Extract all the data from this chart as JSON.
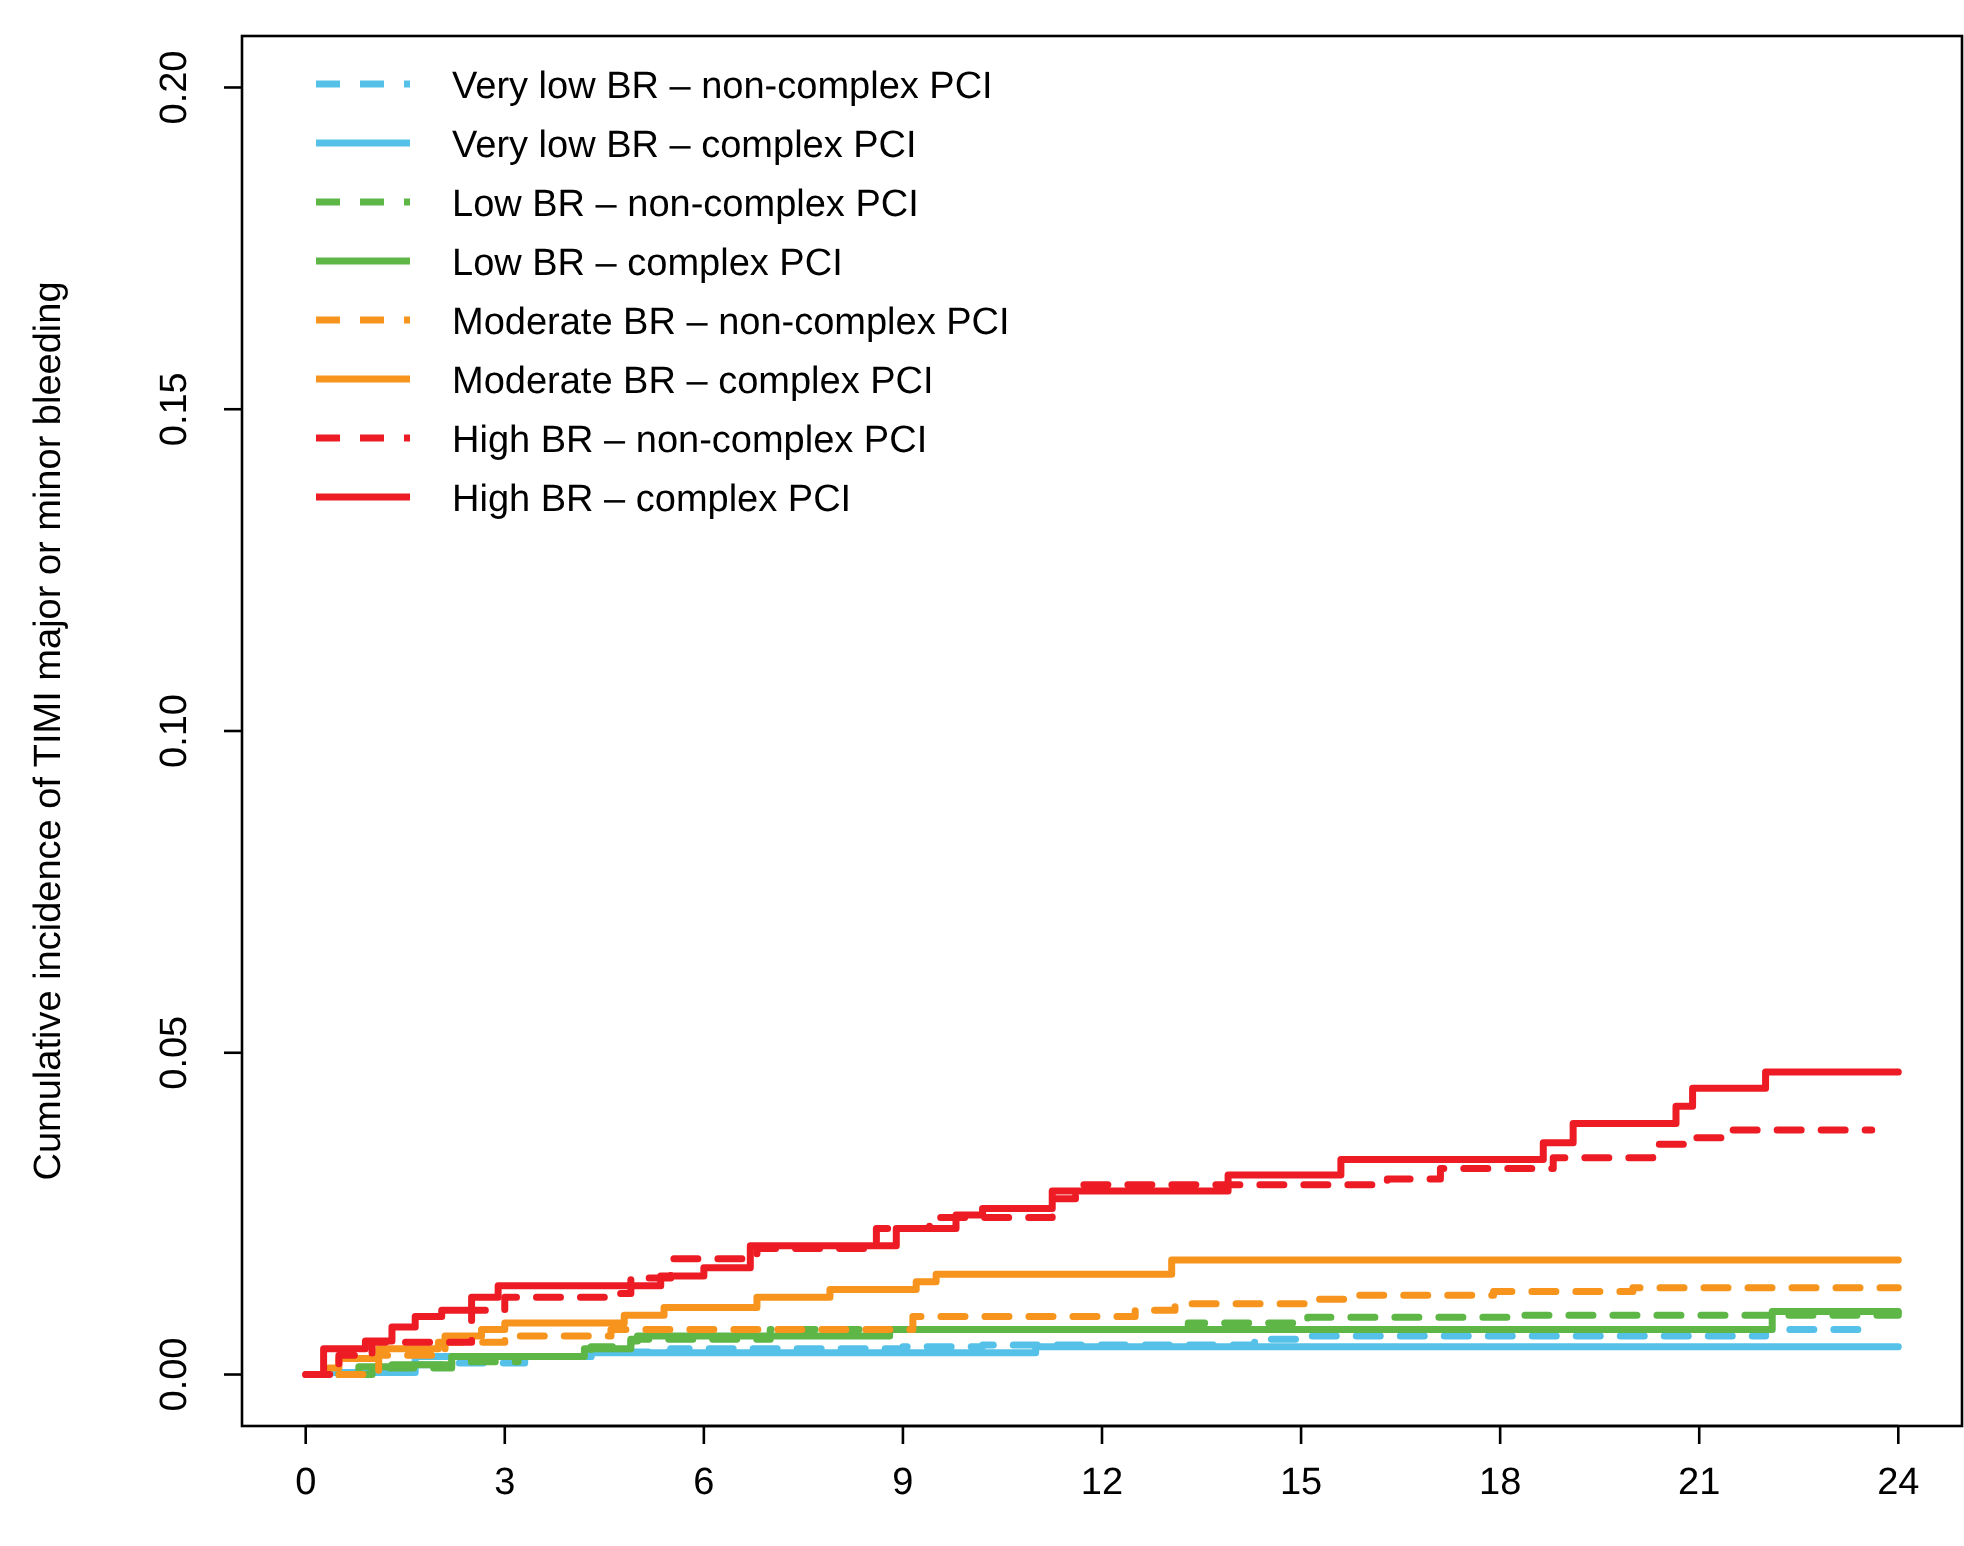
{
  "chart_data": {
    "type": "step",
    "ylabel": "Cumulative incidence of TIMI major or minor bleeding",
    "xlim": [
      -0.96,
      24.96
    ],
    "ylim": [
      -0.008,
      0.208
    ],
    "xticks": [
      0,
      3,
      6,
      9,
      12,
      15,
      18,
      21,
      24
    ],
    "yticks": [
      {
        "value": 0,
        "label": "0.00"
      },
      {
        "value": 0.05,
        "label": "0.05"
      },
      {
        "value": 0.1,
        "label": "0.10"
      },
      {
        "value": 0.15,
        "label": "0.15"
      },
      {
        "value": 0.2,
        "label": "0.20"
      }
    ],
    "grid": false,
    "legend": "top left",
    "series": [
      {
        "name": "Very low BR – non-complex PCI",
        "color": "#56c1e8",
        "line_style": "dashed",
        "x": [
          0.5,
          0.9,
          1.4,
          2.2,
          3.3,
          4.3,
          5.5,
          9.0,
          10.2,
          14.3,
          15.1,
          22.0,
          23.6
        ],
        "values": [
          0,
          0.001,
          0.0015,
          0.0018,
          0.0028,
          0.0035,
          0.004,
          0.0043,
          0.0046,
          0.0055,
          0.006,
          0.007,
          0.007
        ]
      },
      {
        "name": "Very low BR – complex PCI",
        "color": "#56c1e8",
        "line_style": "solid",
        "x": [
          0.4,
          1.65,
          4.3,
          11.0,
          24
        ],
        "values": [
          0.0003,
          0.0028,
          0.0034,
          0.0043,
          0.0043
        ]
      },
      {
        "name": "Low BR – non-complex PCI",
        "color": "#5db646",
        "line_style": "dashed",
        "x": [
          0.7,
          1.0,
          2.2,
          3.2,
          4.3,
          4.9,
          7.0,
          13.3,
          15.1,
          18.2,
          24
        ],
        "values": [
          0,
          0.001,
          0.002,
          0.0028,
          0.0043,
          0.0055,
          0.007,
          0.008,
          0.0089,
          0.0092,
          0.0098
        ]
      },
      {
        "name": "Low BR – complex PCI",
        "color": "#5db646",
        "line_style": "solid",
        "x": [
          0.5,
          0.8,
          1.3,
          2.2,
          4.2,
          4.9,
          5.0,
          8.8,
          22.1,
          24
        ],
        "values": [
          0,
          0.0012,
          0.0015,
          0.0028,
          0.004,
          0.0052,
          0.006,
          0.007,
          0.0098,
          0.0098
        ]
      },
      {
        "name": "Moderate BR – non-complex PCI",
        "color": "#f7941d",
        "line_style": "dashed",
        "x": [
          0.5,
          1.1,
          2.1,
          3.0,
          4.6,
          9.15,
          12.5,
          13.1,
          15.2,
          15.8,
          17.9,
          20.0,
          24
        ],
        "values": [
          0,
          0.003,
          0.005,
          0.006,
          0.007,
          0.009,
          0.01,
          0.011,
          0.0117,
          0.0123,
          0.0129,
          0.0135,
          0.0135
        ]
      },
      {
        "name": "Moderate BR – complex PCI",
        "color": "#f7941d",
        "line_style": "solid",
        "x": [
          0.35,
          0.5,
          1.1,
          2.0,
          2.1,
          2.65,
          3.0,
          4.8,
          5.4,
          6.8,
          7.9,
          9.2,
          9.5,
          13.05,
          24
        ],
        "values": [
          0.001,
          0.0025,
          0.004,
          0.005,
          0.006,
          0.007,
          0.008,
          0.0092,
          0.0104,
          0.012,
          0.0132,
          0.0144,
          0.0156,
          0.0178,
          0.0178
        ]
      },
      {
        "name": "High BR – non-complex PCI",
        "color": "#ed1c24",
        "line_style": "dashed",
        "x": [
          0,
          0.5,
          1.0,
          2.5,
          3.0,
          4.5,
          4.9,
          5.5,
          6.8,
          8.6,
          9.4,
          11.25,
          11.6,
          16.3,
          17.1,
          18.8,
          20.3,
          20.9,
          21.5,
          23.6
        ],
        "values": [
          0,
          0.003,
          0.005,
          0.01,
          0.012,
          0.0126,
          0.015,
          0.018,
          0.0196,
          0.0227,
          0.0244,
          0.0273,
          0.0295,
          0.0304,
          0.032,
          0.0337,
          0.0358,
          0.0368,
          0.038,
          0.038
        ]
      },
      {
        "name": "High BR – complex PCI",
        "color": "#ed1c24",
        "line_style": "solid",
        "x": [
          0,
          0.27,
          0.9,
          1.3,
          1.65,
          2.05,
          2.5,
          2.9,
          5.35,
          6.0,
          6.7,
          8.9,
          9.8,
          10.2,
          11.25,
          13.9,
          15.6,
          18.65,
          19.1,
          20.65,
          20.9,
          22.0,
          24
        ],
        "values": [
          0,
          0.004,
          0.0052,
          0.0074,
          0.009,
          0.01,
          0.012,
          0.0138,
          0.0153,
          0.0166,
          0.02,
          0.0227,
          0.0248,
          0.0258,
          0.0285,
          0.031,
          0.0334,
          0.036,
          0.039,
          0.0417,
          0.0445,
          0.047,
          0.047
        ]
      }
    ]
  }
}
